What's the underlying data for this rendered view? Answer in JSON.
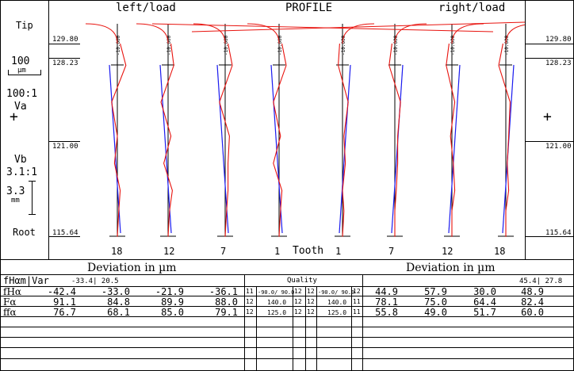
{
  "colors": {
    "measured": "#e8130e",
    "nominal": "#1a1aef",
    "frame": "#000000"
  },
  "header": {
    "left": "left/load",
    "center": "PROFILE",
    "right": "right/load"
  },
  "sidebar": {
    "tip": "Tip",
    "root": "Root",
    "scale_x_value": "100",
    "scale_x_unit": "µm",
    "va_ratio": "100:1",
    "va_label": "Va",
    "vb_label": "Vb",
    "vb_ratio": "3.1:1",
    "mm_value": "3.3",
    "mm_unit": "mm",
    "axis_labels": [
      "129.80",
      "128.23",
      "121.00",
      "115.64"
    ]
  },
  "chart_data": {
    "type": "line",
    "title": "PROFILE",
    "xlabel": "Tooth",
    "ylabel": "",
    "ylim": [
      115.64,
      129.8
    ],
    "y_axis_ticks": [
      "129.80",
      "128.23",
      "121.00",
      "115.64"
    ],
    "panels": [
      {
        "flank": "left/load",
        "tooth": "18",
        "series": [
          {
            "y": [
              129.8,
              128.2,
              125.5,
              123.0,
              121.0,
              119.0,
              117.5,
              115.6
            ],
            "deviation": [
              0.1,
              0.3,
              -0.2,
              0.0,
              -0.1,
              0.1,
              0.05,
              0.0
            ]
          }
        ]
      },
      {
        "flank": "left/load",
        "tooth": "12",
        "series": [
          {
            "y": [
              129.8,
              128.2,
              125.5,
              123.0,
              121.0,
              119.0,
              117.5,
              115.6
            ],
            "deviation": [
              0.1,
              0.2,
              -0.25,
              0.1,
              -0.15,
              0.15,
              0.05,
              0.0
            ]
          }
        ]
      },
      {
        "flank": "left/load",
        "tooth": "7",
        "series": [
          {
            "y": [
              129.8,
              128.2,
              125.5,
              123.0,
              121.0,
              119.0,
              117.5,
              115.6
            ],
            "deviation": [
              0.1,
              0.25,
              -0.2,
              0.15,
              0.1,
              0.1,
              0.05,
              0.0
            ]
          }
        ]
      },
      {
        "flank": "left/load",
        "tooth": "1",
        "series": [
          {
            "y": [
              129.8,
              128.2,
              125.5,
              123.0,
              121.0,
              119.0,
              117.5,
              115.6
            ],
            "deviation": [
              0.1,
              0.25,
              -0.2,
              0.05,
              -0.2,
              0.1,
              0.05,
              0.0
            ]
          }
        ]
      },
      {
        "flank": "right/load",
        "tooth": "1",
        "series": [
          {
            "y": [
              129.8,
              128.2,
              125.5,
              123.0,
              121.0,
              119.0,
              117.5,
              115.6
            ],
            "deviation": [
              -0.1,
              -0.15,
              0.2,
              0.05,
              0.1,
              0.0,
              0.05,
              0.0
            ]
          }
        ]
      },
      {
        "flank": "right/load",
        "tooth": "7",
        "series": [
          {
            "y": [
              129.8,
              128.2,
              125.5,
              123.0,
              121.0,
              119.0,
              117.5,
              115.6
            ],
            "deviation": [
              -0.1,
              -0.2,
              0.2,
              0.1,
              0.1,
              0.05,
              0.0,
              0.0
            ]
          }
        ]
      },
      {
        "flank": "right/load",
        "tooth": "12",
        "series": [
          {
            "y": [
              129.8,
              128.2,
              125.5,
              123.0,
              121.0,
              119.0,
              117.5,
              115.6
            ],
            "deviation": [
              -0.1,
              -0.2,
              0.1,
              -0.05,
              0.05,
              0.1,
              0.0,
              0.0
            ]
          }
        ]
      },
      {
        "flank": "right/load",
        "tooth": "18",
        "series": [
          {
            "y": [
              129.8,
              128.2,
              125.5,
              123.0,
              121.0,
              119.0,
              117.5,
              115.6
            ],
            "deviation": [
              -0.1,
              -0.25,
              0.15,
              0.1,
              0.05,
              0.1,
              0.0,
              0.0
            ]
          }
        ]
      }
    ],
    "tolerance_labels": [
      "-10.000",
      "-10.000",
      "-10.000",
      "-10.000",
      "-10.000",
      "-10.000",
      "-10.000",
      "-10.000"
    ]
  },
  "table": {
    "left_title": "Deviation in µm",
    "right_title": "Deviation in µm",
    "var_label": "fHαm|Var",
    "var_left": "-33.4| 20.5",
    "var_right": "45.4| 27.8",
    "quality_label": "Quality",
    "rows": [
      {
        "name": "fHα",
        "left": [
          "-42.4",
          "-33.0",
          "-21.9",
          "-36.1"
        ],
        "ql": "11",
        "qlimit_l": "-90.0/ 90.0",
        "qa": "12",
        "qb": "12",
        "qlimit_r": "-90.0/ 90.0",
        "qr": "12",
        "right": [
          "44.9",
          "57.9",
          "30.0",
          "48.9"
        ]
      },
      {
        "name": "Fα",
        "left": [
          "91.1",
          "84.8",
          "89.9",
          "88.0"
        ],
        "ql": "12",
        "qlimit_l": "140.0",
        "qa": "12",
        "qb": "12",
        "qlimit_r": "140.0",
        "qr": "11",
        "right": [
          "78.1",
          "75.0",
          "64.4",
          "82.4"
        ]
      },
      {
        "name": "ffα",
        "left": [
          "76.7",
          "68.1",
          "85.0",
          "79.1"
        ],
        "ql": "12",
        "qlimit_l": "125.0",
        "qa": "12",
        "qb": "12",
        "qlimit_r": "125.0",
        "qr": "11",
        "right": [
          "55.8",
          "49.0",
          "51.7",
          "60.0"
        ]
      }
    ]
  }
}
